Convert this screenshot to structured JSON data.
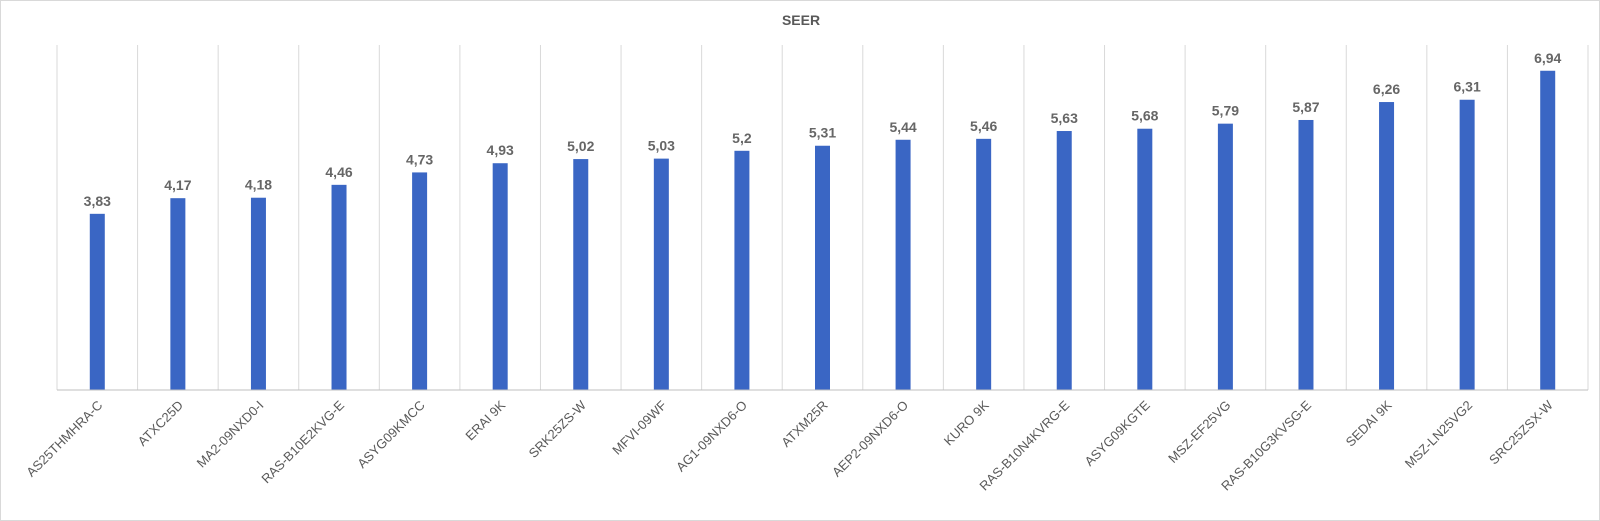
{
  "chart_data": {
    "type": "bar",
    "title": "SEER",
    "xlabel": "",
    "ylabel": "",
    "categories": [
      "AS25THMHRA-C",
      "ATXC25D",
      "MA2-09NXD0-I",
      "RAS-B10E2KVG-E",
      "ASYG09KMCC",
      "ERAI 9K",
      "SRK25ZS-W",
      "MFVI-09WF",
      "AG1-09NXD6-O",
      "ATXM25R",
      "AEP2-09NXD6-O",
      "KURO 9K",
      "RAS-B10N4KVRG-E",
      "ASYG09KGTE",
      "MSZ-EF25VG",
      "RAS-B10G3KVSG-E",
      "SEDAI 9K",
      "MSZ-LN25VG2",
      "SRC25ZSX-W"
    ],
    "values": [
      3.83,
      4.17,
      4.18,
      4.46,
      4.73,
      4.93,
      5.02,
      5.03,
      5.2,
      5.31,
      5.44,
      5.46,
      5.63,
      5.68,
      5.79,
      5.87,
      6.26,
      6.31,
      6.94
    ],
    "labels": [
      "3,83",
      "4,17",
      "4,18",
      "4,46",
      "4,73",
      "4,93",
      "5,02",
      "5,03",
      "5,2",
      "5,31",
      "5,44",
      "5,46",
      "5,63",
      "5,68",
      "5,79",
      "5,87",
      "6,26",
      "6,31",
      "6,94"
    ],
    "ylim": [
      0,
      7.5
    ],
    "grid": "vertical category dividers",
    "legend": "none",
    "colors": {
      "bar": "#3a66c4",
      "grid": "#d9d9d9",
      "axis": "#bfbfbf"
    }
  }
}
